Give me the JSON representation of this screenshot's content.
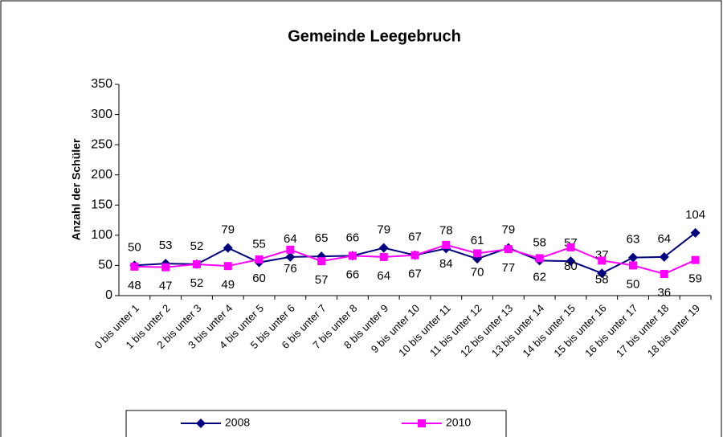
{
  "chart_data": {
    "type": "line",
    "title": "Gemeinde Leegebruch",
    "y_label": "Anzahl der Schüler",
    "categories": [
      "0 bis unter 1",
      "1 bis unter 2",
      "2 bis unter 3",
      "3 bis unter 4",
      "4 bis unter 5",
      "5 bis unter 6",
      "6 bis unter 7",
      "7 bis unter 8",
      "8 bis unter 9",
      "9 bis unter 10",
      "10 bis unter 11",
      "11 bis unter 12",
      "12 bis unter 13",
      "13 bis unter 14",
      "14 bis unter 15",
      "15 bis unter 16",
      "16 bis unter 17",
      "17 bis unter 18",
      "18 bis unter 19"
    ],
    "series": [
      {
        "name": "2008",
        "color": "#000080",
        "marker": "diamond",
        "values": [
          50,
          53,
          52,
          79,
          55,
          64,
          65,
          66,
          79,
          67,
          78,
          61,
          79,
          58,
          57,
          37,
          63,
          64,
          104
        ]
      },
      {
        "name": "2010",
        "color": "#ff00ff",
        "marker": "square",
        "values": [
          48,
          47,
          52,
          49,
          60,
          76,
          57,
          66,
          64,
          67,
          84,
          70,
          77,
          62,
          80,
          58,
          50,
          36,
          59
        ]
      }
    ],
    "ylim": [
      0,
      350
    ],
    "yticks": [
      0,
      50,
      100,
      150,
      200,
      250,
      300,
      350
    ],
    "grid": false,
    "legend": "bottom"
  }
}
